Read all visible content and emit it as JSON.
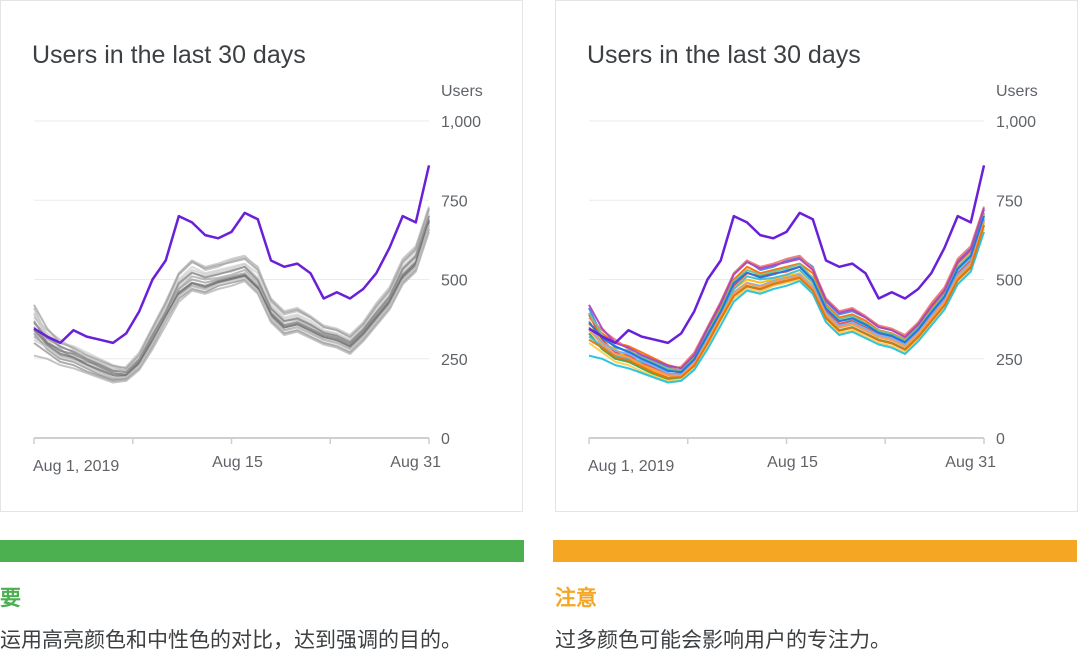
{
  "panels": [
    {
      "title": "Users in the last 30 days",
      "style": "grey",
      "highlight_color": "#6a1fd8",
      "context_colors": [
        "#b8b8b8",
        "#c4c4c4",
        "#9a9a9a",
        "#8a8a8a",
        "#d0d0d0",
        "#a6a6a6",
        "#7a7a7a",
        "#bdbdbd",
        "#909090",
        "#cccccc",
        "#6e6e6e",
        "#b0b0b0",
        "#a0a0a0",
        "#c8c8c8",
        "#848484"
      ]
    },
    {
      "title": "Users in the last 30 days",
      "style": "color",
      "highlight_color": "#6a1fd8",
      "context_colors": [
        "#4285f4",
        "#ea4335",
        "#fbbc04",
        "#34a853",
        "#ff6d01",
        "#46bdc6",
        "#7baaf7",
        "#f07b72",
        "#fcd04f",
        "#71c287",
        "#ff994d",
        "#24c1e0",
        "#ab47bc",
        "#e8710a",
        "#1a73e8"
      ]
    }
  ],
  "footer": {
    "do_label": "要",
    "do_text": "运用高亮颜色和中性色的对比，达到强调的目的。",
    "do_color": "#4caf50",
    "caution_label": "注意",
    "caution_text": "过多颜色可能会影响用户的专注力。",
    "caution_color": "#f5a623"
  },
  "chart_data": {
    "type": "line",
    "ylabel": "Users",
    "ylim": [
      0,
      1000
    ],
    "yticks": [
      "0",
      "250",
      "500",
      "750",
      "1,000"
    ],
    "xticks": [
      "Aug 1, 2019",
      "Aug 15",
      "Aug 31"
    ],
    "x": [
      1,
      2,
      3,
      4,
      5,
      6,
      7,
      8,
      9,
      10,
      11,
      12,
      13,
      14,
      15,
      16,
      17,
      18,
      19,
      20,
      21,
      22,
      23,
      24,
      25,
      26,
      27,
      28,
      29,
      30,
      31
    ],
    "highlight": [
      345,
      320,
      300,
      340,
      320,
      310,
      300,
      330,
      400,
      500,
      560,
      700,
      680,
      640,
      630,
      650,
      710,
      690,
      560,
      540,
      550,
      520,
      440,
      460,
      440,
      470,
      520,
      600,
      700,
      680,
      860
    ],
    "series": [
      {
        "values": [
          410,
          320,
          290,
          270,
          260,
          240,
          225,
          210,
          250,
          330,
          420,
          520,
          560,
          530,
          540,
          560,
          570,
          540,
          430,
          390,
          400,
          380,
          350,
          340,
          320,
          360,
          420,
          470,
          560,
          600,
          720
        ]
      },
      {
        "values": [
          390,
          310,
          270,
          260,
          235,
          220,
          200,
          205,
          245,
          330,
          400,
          480,
          520,
          510,
          520,
          525,
          540,
          500,
          400,
          360,
          370,
          350,
          330,
          320,
          300,
          340,
          390,
          440,
          520,
          560,
          690
        ]
      },
      {
        "values": [
          370,
          300,
          280,
          250,
          230,
          210,
          190,
          200,
          240,
          320,
          390,
          470,
          500,
          490,
          500,
          510,
          520,
          480,
          390,
          350,
          360,
          340,
          320,
          310,
          290,
          330,
          380,
          430,
          510,
          550,
          680
        ]
      },
      {
        "values": [
          330,
          280,
          250,
          240,
          220,
          200,
          185,
          190,
          230,
          300,
          380,
          450,
          480,
          470,
          490,
          500,
          510,
          470,
          380,
          340,
          350,
          330,
          310,
          300,
          280,
          320,
          370,
          420,
          500,
          540,
          670
        ]
      },
      {
        "values": [
          360,
          330,
          300,
          290,
          270,
          250,
          230,
          220,
          260,
          340,
          410,
          500,
          540,
          520,
          530,
          540,
          550,
          520,
          420,
          380,
          390,
          370,
          340,
          330,
          310,
          350,
          410,
          460,
          550,
          590,
          710
        ]
      },
      {
        "values": [
          320,
          290,
          260,
          250,
          240,
          230,
          210,
          215,
          250,
          320,
          390,
          470,
          510,
          500,
          505,
          515,
          530,
          490,
          410,
          370,
          375,
          355,
          335,
          325,
          305,
          345,
          395,
          445,
          530,
          570,
          700
        ]
      },
      {
        "values": [
          350,
          300,
          275,
          265,
          245,
          225,
          205,
          200,
          240,
          310,
          380,
          460,
          490,
          480,
          495,
          505,
          515,
          475,
          395,
          355,
          365,
          345,
          325,
          315,
          295,
          335,
          385,
          435,
          515,
          555,
          690
        ]
      },
      {
        "values": [
          380,
          340,
          310,
          280,
          250,
          235,
          215,
          225,
          270,
          350,
          430,
          520,
          560,
          540,
          550,
          565,
          575,
          535,
          440,
          400,
          410,
          385,
          355,
          345,
          325,
          365,
          425,
          475,
          565,
          605,
          730
        ]
      },
      {
        "values": [
          300,
          270,
          240,
          230,
          210,
          195,
          180,
          185,
          220,
          290,
          370,
          440,
          470,
          460,
          480,
          490,
          500,
          460,
          370,
          330,
          340,
          320,
          300,
          290,
          270,
          310,
          360,
          410,
          490,
          530,
          660
        ]
      },
      {
        "values": [
          395,
          325,
          285,
          275,
          255,
          238,
          218,
          212,
          252,
          332,
          405,
          495,
          530,
          515,
          525,
          535,
          548,
          505,
          415,
          375,
          385,
          362,
          338,
          328,
          308,
          348,
          402,
          452,
          540,
          580,
          705
        ]
      },
      {
        "values": [
          340,
          295,
          265,
          255,
          232,
          215,
          198,
          196,
          236,
          305,
          385,
          455,
          488,
          476,
          492,
          502,
          512,
          472,
          388,
          348,
          358,
          338,
          318,
          308,
          288,
          328,
          378,
          428,
          508,
          548,
          685
        ]
      },
      {
        "values": [
          260,
          250,
          230,
          220,
          205,
          190,
          175,
          180,
          215,
          280,
          355,
          430,
          465,
          455,
          470,
          480,
          495,
          455,
          365,
          325,
          335,
          315,
          295,
          285,
          265,
          305,
          355,
          405,
          485,
          525,
          650
        ]
      },
      {
        "values": [
          420,
          345,
          300,
          285,
          262,
          245,
          228,
          220,
          262,
          345,
          425,
          515,
          555,
          535,
          545,
          555,
          565,
          530,
          435,
          395,
          405,
          380,
          350,
          340,
          318,
          358,
          415,
          465,
          555,
          595,
          725
        ]
      },
      {
        "values": [
          310,
          285,
          255,
          245,
          225,
          205,
          190,
          192,
          228,
          298,
          375,
          448,
          478,
          468,
          485,
          495,
          505,
          465,
          378,
          338,
          348,
          328,
          308,
          298,
          278,
          318,
          368,
          418,
          498,
          538,
          672
        ]
      },
      {
        "values": [
          365,
          315,
          288,
          272,
          250,
          232,
          212,
          208,
          248,
          325,
          398,
          488,
          522,
          506,
          516,
          528,
          540,
          498,
          408,
          368,
          378,
          358,
          332,
          322,
          302,
          342,
          396,
          446,
          534,
          574,
          700
        ]
      }
    ]
  }
}
